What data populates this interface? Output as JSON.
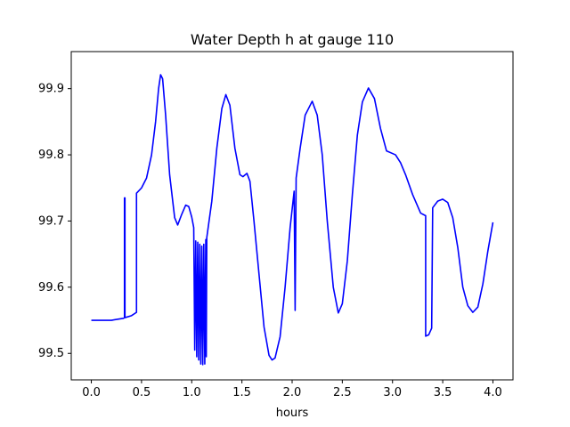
{
  "chart_data": {
    "type": "line",
    "title": "Water Depth h at gauge 110",
    "xlabel": "hours",
    "ylabel": "",
    "xlim": [
      -0.2,
      4.2
    ],
    "ylim": [
      99.46,
      99.956
    ],
    "x_ticks": [
      0.0,
      0.5,
      1.0,
      1.5,
      2.0,
      2.5,
      3.0,
      3.5,
      4.0
    ],
    "x_tick_labels": [
      "0.0",
      "0.5",
      "1.0",
      "1.5",
      "2.0",
      "2.5",
      "3.0",
      "3.5",
      "4.0"
    ],
    "y_ticks": [
      99.5,
      99.6,
      99.7,
      99.8,
      99.9
    ],
    "y_tick_labels": [
      "99.5",
      "99.6",
      "99.7",
      "99.8",
      "99.9"
    ],
    "grid": false,
    "legend": "none",
    "series": [
      {
        "color": "#0000ff",
        "points": [
          [
            0.0,
            99.55
          ],
          [
            0.2,
            99.55
          ],
          [
            0.32,
            99.553
          ],
          [
            0.33,
            99.554
          ],
          [
            0.33,
            99.735
          ],
          [
            0.335,
            99.735
          ],
          [
            0.335,
            99.554
          ],
          [
            0.4,
            99.557
          ],
          [
            0.45,
            99.562
          ],
          [
            0.45,
            99.742
          ],
          [
            0.5,
            99.75
          ],
          [
            0.55,
            99.765
          ],
          [
            0.6,
            99.8
          ],
          [
            0.64,
            99.85
          ],
          [
            0.67,
            99.9
          ],
          [
            0.69,
            99.921
          ],
          [
            0.71,
            99.915
          ],
          [
            0.74,
            99.86
          ],
          [
            0.78,
            99.77
          ],
          [
            0.83,
            99.705
          ],
          [
            0.86,
            99.694
          ],
          [
            0.9,
            99.71
          ],
          [
            0.94,
            99.724
          ],
          [
            0.97,
            99.722
          ],
          [
            1.0,
            99.706
          ],
          [
            1.02,
            99.69
          ],
          [
            1.03,
            99.505
          ],
          [
            1.04,
            99.67
          ],
          [
            1.05,
            99.495
          ],
          [
            1.06,
            99.668
          ],
          [
            1.07,
            99.49
          ],
          [
            1.08,
            99.665
          ],
          [
            1.09,
            99.484
          ],
          [
            1.1,
            99.662
          ],
          [
            1.11,
            99.483
          ],
          [
            1.12,
            99.665
          ],
          [
            1.13,
            99.484
          ],
          [
            1.14,
            99.672
          ],
          [
            1.145,
            99.495
          ],
          [
            1.15,
            99.675
          ],
          [
            1.2,
            99.73
          ],
          [
            1.25,
            99.81
          ],
          [
            1.3,
            99.87
          ],
          [
            1.34,
            99.891
          ],
          [
            1.38,
            99.875
          ],
          [
            1.43,
            99.81
          ],
          [
            1.48,
            99.77
          ],
          [
            1.51,
            99.767
          ],
          [
            1.55,
            99.772
          ],
          [
            1.58,
            99.76
          ],
          [
            1.62,
            99.7
          ],
          [
            1.67,
            99.62
          ],
          [
            1.72,
            99.54
          ],
          [
            1.77,
            99.497
          ],
          [
            1.8,
            99.49
          ],
          [
            1.83,
            99.493
          ],
          [
            1.88,
            99.525
          ],
          [
            1.93,
            99.6
          ],
          [
            1.98,
            99.69
          ],
          [
            2.02,
            99.745
          ],
          [
            2.03,
            99.565
          ],
          [
            2.04,
            99.765
          ],
          [
            2.08,
            99.81
          ],
          [
            2.13,
            99.86
          ],
          [
            2.2,
            99.881
          ],
          [
            2.25,
            99.86
          ],
          [
            2.3,
            99.8
          ],
          [
            2.35,
            99.7
          ],
          [
            2.41,
            99.6
          ],
          [
            2.46,
            99.561
          ],
          [
            2.5,
            99.575
          ],
          [
            2.55,
            99.64
          ],
          [
            2.6,
            99.74
          ],
          [
            2.65,
            99.83
          ],
          [
            2.7,
            99.88
          ],
          [
            2.76,
            99.901
          ],
          [
            2.82,
            99.885
          ],
          [
            2.88,
            99.84
          ],
          [
            2.94,
            99.806
          ],
          [
            3.0,
            99.802
          ],
          [
            3.03,
            99.8
          ],
          [
            3.08,
            99.788
          ],
          [
            3.13,
            99.77
          ],
          [
            3.2,
            99.74
          ],
          [
            3.28,
            99.712
          ],
          [
            3.33,
            99.708
          ],
          [
            3.33,
            99.526
          ],
          [
            3.36,
            99.528
          ],
          [
            3.39,
            99.538
          ],
          [
            3.4,
            99.72
          ],
          [
            3.45,
            99.73
          ],
          [
            3.5,
            99.733
          ],
          [
            3.55,
            99.728
          ],
          [
            3.6,
            99.705
          ],
          [
            3.65,
            99.66
          ],
          [
            3.7,
            99.6
          ],
          [
            3.75,
            99.572
          ],
          [
            3.8,
            99.562
          ],
          [
            3.85,
            99.57
          ],
          [
            3.9,
            99.605
          ],
          [
            3.95,
            99.655
          ],
          [
            4.0,
            99.698
          ]
        ]
      }
    ]
  }
}
